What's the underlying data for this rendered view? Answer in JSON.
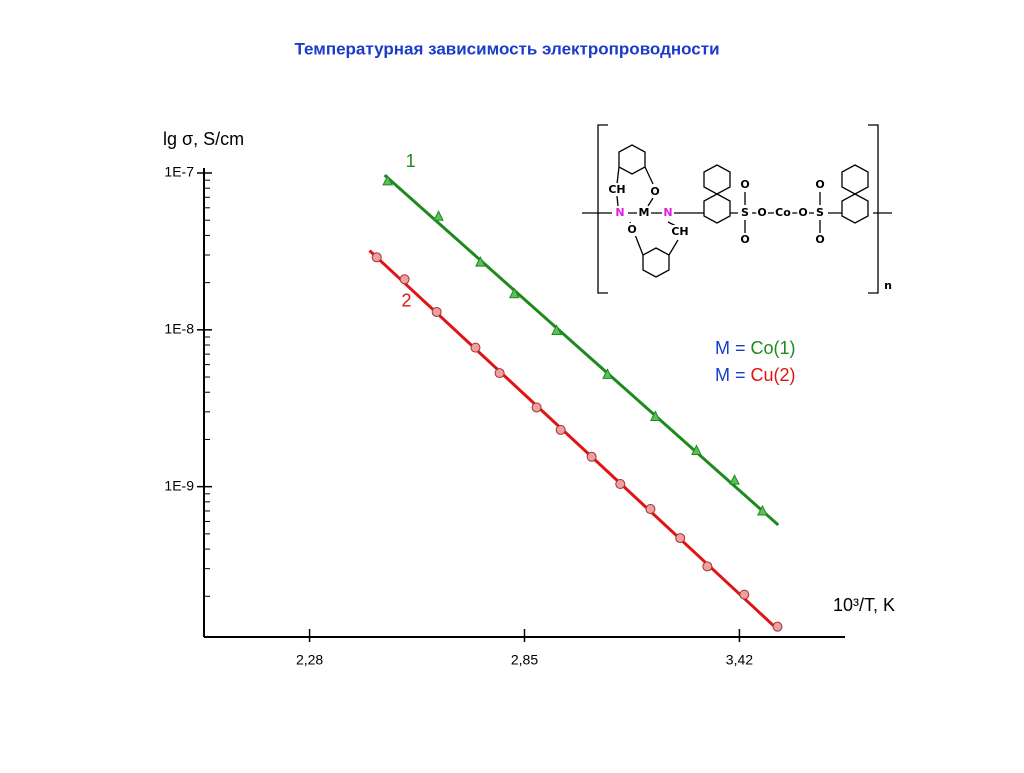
{
  "chart_data": {
    "type": "scatter",
    "title": "Температурная зависимость электропроводности",
    "y_label": "lg σ, S/cm",
    "x_label": "10³/T, K",
    "xlim": [
      2.0,
      3.7
    ],
    "ylim": [
      1.1e-10,
      1e-07
    ],
    "ylog": true,
    "minor_ticks": true,
    "xticks": [
      {
        "value": 2.28,
        "label": "2,28"
      },
      {
        "value": 2.85,
        "label": "2,85"
      },
      {
        "value": 3.42,
        "label": "3,42"
      }
    ],
    "yticks": [
      {
        "value": 1e-07,
        "label": "1E-7"
      },
      {
        "value": 1e-08,
        "label": "1E-8"
      },
      {
        "value": 1e-09,
        "label": "1E-9"
      }
    ],
    "series": [
      {
        "name": "1",
        "color": "#1e8a1e",
        "marker": "triangle",
        "marker_fill": "#5cbf5c",
        "x": [
          2.487,
          2.622,
          2.733,
          2.823,
          2.935,
          3.07,
          3.197,
          3.306,
          3.407,
          3.481
        ],
        "values": [
          8.9e-08,
          5.3e-08,
          2.7e-08,
          1.7e-08,
          9.9e-09,
          5.2e-09,
          2.8e-09,
          1.7e-09,
          1.1e-09,
          7e-10
        ],
        "fit": {
          "x": [
            2.479,
            3.523
          ],
          "values": [
            9.7e-08,
            5.7e-10
          ]
        }
      },
      {
        "name": "2",
        "color": "#e01414",
        "marker": "circle",
        "marker_fill": "#eea0a0",
        "x": [
          2.458,
          2.532,
          2.617,
          2.72,
          2.784,
          2.882,
          2.946,
          3.028,
          3.104,
          3.184,
          3.263,
          3.335,
          3.433,
          3.521
        ],
        "values": [
          2.9e-08,
          2.1e-08,
          1.3e-08,
          7.7e-09,
          5.3e-09,
          3.2e-09,
          2.3e-09,
          1.55e-09,
          1.04e-09,
          7.2e-10,
          4.7e-10,
          3.1e-10,
          2.05e-10,
          1.28e-10
        ],
        "fit": {
          "x": [
            2.439,
            3.518
          ],
          "values": [
            3.2e-08,
            1.25e-10
          ]
        }
      }
    ],
    "metal_legend": [
      {
        "symbol": "M =",
        "metal": "Co(1)"
      },
      {
        "symbol": "M =",
        "metal": "Cu(2)"
      }
    ]
  },
  "structure": {
    "labels": [
      "CH",
      "O",
      "N",
      "M",
      "N",
      "O",
      "CH",
      "O",
      "S",
      "O",
      "O",
      "Co",
      "O",
      "O",
      "S",
      "O",
      "n"
    ]
  }
}
